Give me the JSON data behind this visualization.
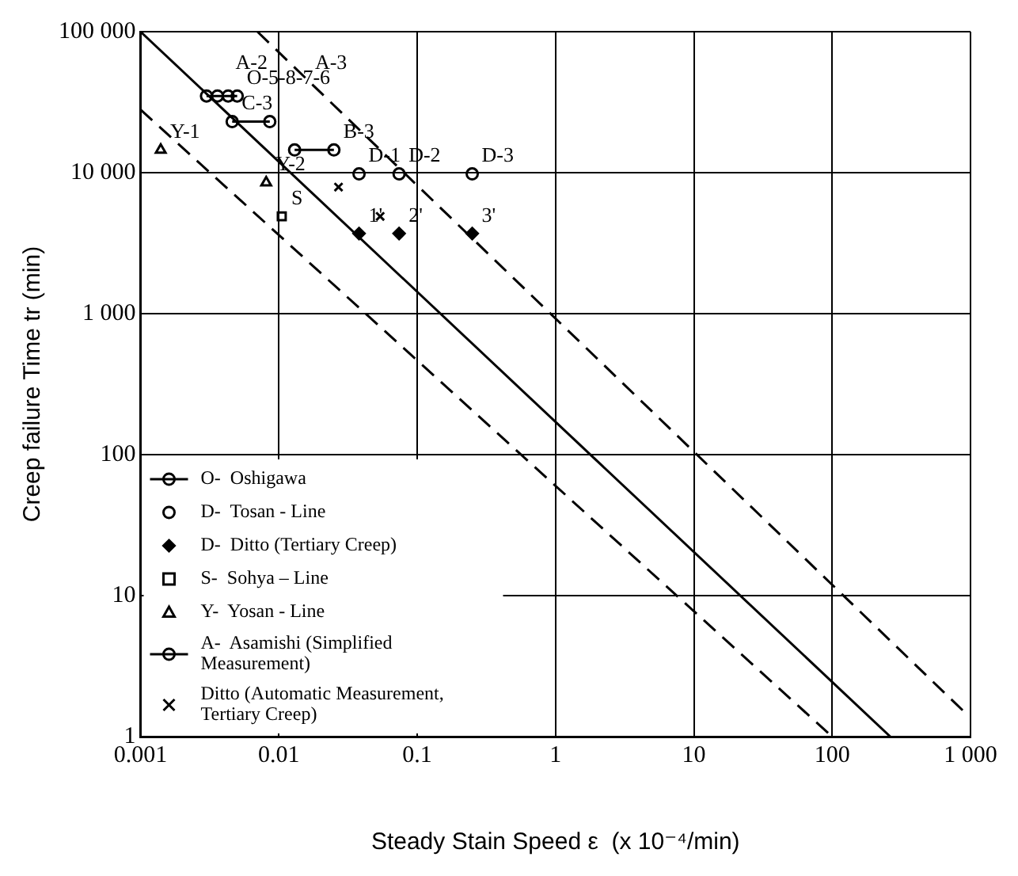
{
  "chart_data": {
    "type": "scatter",
    "xlabel": "Steady Stain Speed ε  (x 10⁻⁴/min)",
    "ylabel": "Creep failure Time tr (min)",
    "log": "xy",
    "grid": true,
    "legend": "bottom left",
    "xlim": [
      0.001,
      1000
    ],
    "ylim": [
      1,
      100000
    ],
    "xticks": [
      0.001,
      0.01,
      0.1,
      1,
      10,
      100,
      {
        "value": 1000,
        "label": "1 000"
      }
    ],
    "yticks": [
      1,
      10,
      100,
      {
        "value": 1000,
        "label": "1 000"
      },
      {
        "value": 10000,
        "label": "10 000"
      },
      {
        "value": 100000,
        "label": "100 000"
      }
    ],
    "series": [
      {
        "name": "O-  Oshigawa",
        "type": "line",
        "marker": "circle",
        "color": "#000000",
        "x": [
          0.003,
          0.0036,
          0.0043,
          0.005
        ],
        "values": [
          35000,
          35000,
          35000,
          35000
        ]
      },
      {
        "name": "D-  Tosan - Line",
        "marker": "circle",
        "color": "#000000",
        "x": [
          0.038,
          0.074,
          0.25
        ],
        "values": [
          9800,
          9800,
          9800
        ]
      },
      {
        "name": "D-  Ditto (Tertiary Creep)",
        "marker": "diamond",
        "color": "#000000",
        "x": [
          0.038,
          0.074,
          0.25
        ],
        "values": [
          3700,
          3700,
          3700
        ]
      },
      {
        "name": "S-  Sohya – Line",
        "marker": "square",
        "color": "#000000",
        "x": [
          0.0105
        ],
        "values": [
          4900
        ]
      },
      {
        "name": "Y-  Yosan - Line",
        "marker": "triangle",
        "color": "#000000",
        "x": [
          0.0014,
          0.0081
        ],
        "values": [
          14500,
          8500
        ]
      },
      {
        "name": "A-  Asamishi (Simplified Measurement)",
        "type": "line",
        "marker": "circle",
        "color": "#000000",
        "x": [
          0.0046,
          0.0086,
          0.01,
          0.013,
          0.025
        ],
        "values": [
          23000,
          23000,
          null,
          14500,
          14500
        ]
      },
      {
        "name": "Ditto (Automatic Measurement, Tertiary Creep)",
        "marker": "cross",
        "color": "#000000",
        "x": [
          0.027,
          0.054
        ],
        "values": [
          7900,
          4900
        ]
      },
      {
        "type": "line",
        "marker": "none",
        "line_style": "solid",
        "color": "#000000",
        "x": [
          0.001,
          263
        ],
        "values": [
          100000,
          1
        ]
      },
      {
        "type": "line",
        "marker": "none",
        "line_style": "dashed",
        "color": "#000000",
        "x": [
          0.007,
          900
        ],
        "values": [
          100000,
          1.5
        ]
      },
      {
        "type": "line",
        "marker": "none",
        "line_style": "dashed",
        "color": "#000000",
        "x": [
          0.001,
          100
        ],
        "values": [
          28000,
          1
        ]
      }
    ],
    "annotations": [
      "A-2",
      "A-3",
      {
        "text": "O-5-8-7-6",
        "x": 0.005,
        "y": 35000
      },
      {
        "text": "B-3",
        "x": 0.025,
        "y": 14500
      },
      {
        "text": "C-3",
        "x": 0.0046,
        "y": 23000
      },
      {
        "text": "Y-1",
        "x": 0.0014,
        "y": 14500
      },
      {
        "text": "Y-2",
        "x": 0.0081,
        "y": 8500
      },
      {
        "text": "S",
        "x": 0.0105,
        "y": 4900
      },
      {
        "text": "D-1",
        "x": 0.038,
        "y": 9800
      },
      {
        "text": "D-2",
        "x": 0.074,
        "y": 9800
      },
      {
        "text": "D-3",
        "x": 0.25,
        "y": 9800
      },
      {
        "text": "1'",
        "x": 0.038,
        "y": 3700
      },
      {
        "text": "2'",
        "x": 0.074,
        "y": 3700
      },
      {
        "text": "3'",
        "x": 0.25,
        "y": 3700
      }
    ]
  }
}
